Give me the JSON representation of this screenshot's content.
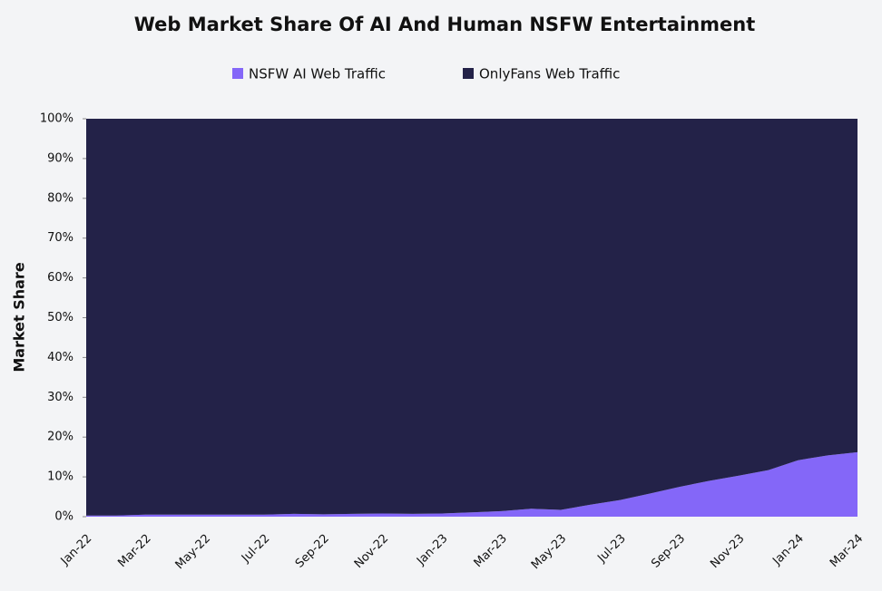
{
  "chart_data": {
    "type": "stacked_area",
    "title": "Web Market Share Of AI And Human NSFW Entertainment",
    "y_label": "Market Share",
    "categories": [
      "Jan-22",
      null,
      "Mar-22",
      null,
      "May-22",
      null,
      "Jul-22",
      null,
      "Sep-22",
      null,
      "Nov-22",
      null,
      "Jan-23",
      null,
      "Mar-23",
      null,
      "May-23",
      null,
      "Jul-23",
      null,
      "Sep-23",
      null,
      "Nov-23",
      null,
      "Jan-24",
      null,
      "Mar-24"
    ],
    "series": [
      {
        "name": "NSFW AI Web Traffic",
        "color": "#8467f8",
        "values": [
          0.3,
          0.3,
          0.5,
          0.5,
          0.5,
          0.5,
          0.5,
          0.7,
          0.6,
          0.7,
          0.8,
          0.7,
          0.8,
          1.1,
          1.4,
          2.0,
          1.7,
          3.0,
          4.2,
          5.8,
          7.5,
          9.0,
          10.3,
          11.7,
          14.2,
          15.4,
          16.2
        ]
      },
      {
        "name": "OnlyFans Web Traffic",
        "color": "#232248",
        "values": [
          99.7,
          99.7,
          99.5,
          99.5,
          99.5,
          99.5,
          99.5,
          99.3,
          99.4,
          99.3,
          99.2,
          99.3,
          99.2,
          98.9,
          98.6,
          98.0,
          98.3,
          97.0,
          95.8,
          94.2,
          92.5,
          91.0,
          89.7,
          88.3,
          85.8,
          84.6,
          83.8
        ]
      }
    ],
    "ylim": [
      0,
      100
    ],
    "yticks": [
      {
        "value": 0,
        "label": "0%"
      },
      {
        "value": 10,
        "label": "10%"
      },
      {
        "value": 20,
        "label": "20%"
      },
      {
        "value": 30,
        "label": "30%"
      },
      {
        "value": 40,
        "label": "40%"
      },
      {
        "value": 50,
        "label": "50%"
      },
      {
        "value": 60,
        "label": "60%"
      },
      {
        "value": 70,
        "label": "70%"
      },
      {
        "value": 80,
        "label": "80%"
      },
      {
        "value": 90,
        "label": "90%"
      },
      {
        "value": 100,
        "label": "100%"
      }
    ],
    "legend": "top"
  }
}
